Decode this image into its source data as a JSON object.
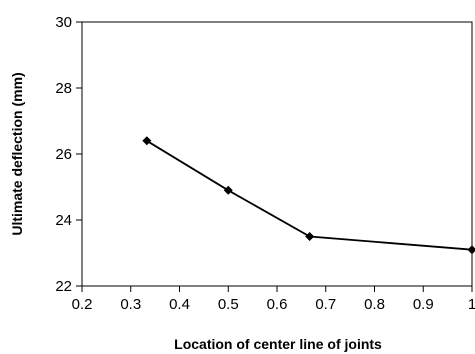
{
  "chart_data": {
    "type": "line",
    "title": "",
    "xlabel": "Location of center line of joints",
    "ylabel": "Ultimate deflection (mm)",
    "xlim": [
      0.2,
      1
    ],
    "ylim": [
      22,
      30
    ],
    "x_ticks": [
      "0.2",
      "0.3",
      "0.4",
      "0.5",
      "0.6",
      "0.7",
      "0.8",
      "0.9",
      "1"
    ],
    "y_ticks": [
      "22",
      "24",
      "26",
      "28",
      "30"
    ],
    "grid": false,
    "legend": "none",
    "marker": "diamond",
    "line_color": "#000000",
    "series": [
      {
        "x": [
          0.333,
          0.5,
          0.667,
          1.0
        ],
        "y": [
          26.4,
          24.9,
          23.5,
          23.1
        ]
      }
    ]
  }
}
